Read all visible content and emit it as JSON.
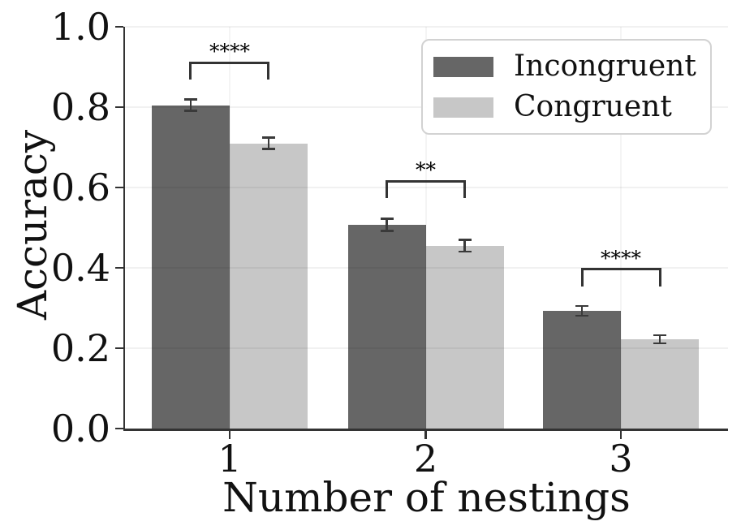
{
  "chart_data": {
    "type": "bar",
    "title": "",
    "xlabel": "Number of nestings",
    "ylabel": "Accuracy",
    "categories": [
      "1",
      "2",
      "3"
    ],
    "series": [
      {
        "name": "Incongruent",
        "color": "#666666",
        "values": [
          0.805,
          0.507,
          0.293
        ],
        "errors": [
          0.014,
          0.015,
          0.012
        ]
      },
      {
        "name": "Congruent",
        "color": "#c7c7c7",
        "values": [
          0.71,
          0.455,
          0.222
        ],
        "errors": [
          0.014,
          0.015,
          0.01
        ]
      }
    ],
    "ylim": [
      0.0,
      1.0
    ],
    "yticks": [
      0.0,
      0.2,
      0.4,
      0.6,
      0.8,
      1.0
    ],
    "ytick_labels": [
      "0.0",
      "0.2",
      "0.4",
      "0.6",
      "0.8",
      "1.0"
    ],
    "grid": true,
    "legend_position": "upper right",
    "significance_brackets": [
      {
        "category": "1",
        "label": "****",
        "y": 0.911,
        "drop": 0.046
      },
      {
        "category": "2",
        "label": "**",
        "y": 0.616,
        "drop": 0.046
      },
      {
        "category": "3",
        "label": "****",
        "y": 0.396,
        "drop": 0.046
      }
    ],
    "colors": {
      "error_bar": "#3a3a3a",
      "bracket": "#333333",
      "axis": "#333333",
      "text": "#111111"
    }
  }
}
